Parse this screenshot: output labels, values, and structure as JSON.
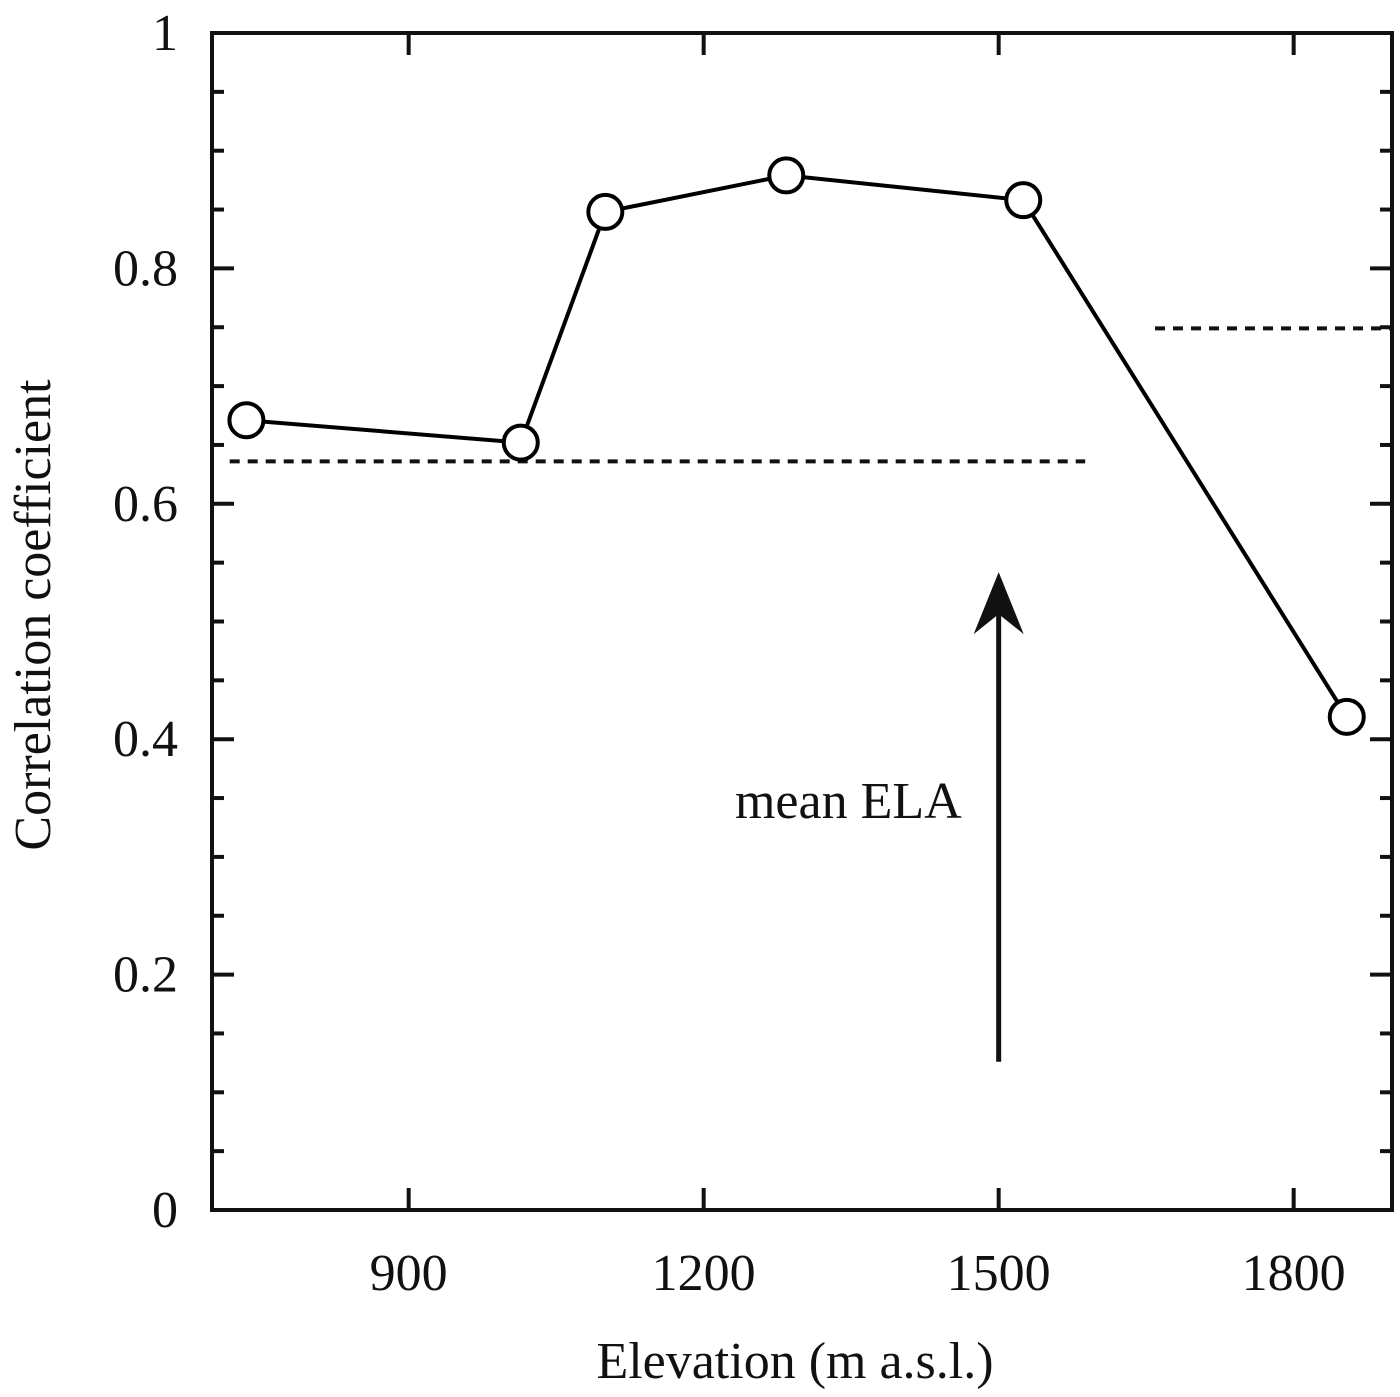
{
  "chart_data": {
    "type": "line",
    "x_label": "Elevation (m a.s.l.)",
    "y_label": "Correlation coefficient",
    "series": [
      {
        "color": "#000000",
        "x": [
          735,
          1014,
          1100,
          1284,
          1525,
          1854
        ],
        "values": [
          0.671,
          0.652,
          0.848,
          0.879,
          0.858,
          0.419
        ]
      }
    ],
    "xlim": [
      700,
      1900
    ],
    "xticks": [
      900,
      1200,
      1500,
      1800
    ],
    "ylim": [
      0,
      1
    ],
    "yticks": [
      0,
      0.2,
      0.4,
      0.6,
      0.8,
      1
    ],
    "yminor_ticks": [
      0.05,
      0.1,
      0.15,
      0.25,
      0.3,
      0.35,
      0.45,
      0.5,
      0.55,
      0.65,
      0.7,
      0.75,
      0.85,
      0.9,
      0.95
    ],
    "reference_lines": [
      {
        "y": 0.636,
        "x": [
          718,
          1588
        ]
      },
      {
        "y": 0.749,
        "x": [
          1659,
          1900
        ]
      }
    ],
    "annotations": [
      {
        "text": "mean ELA",
        "x": 1500,
        "y_start": 0.126,
        "y_end": 0.542
      }
    ]
  }
}
